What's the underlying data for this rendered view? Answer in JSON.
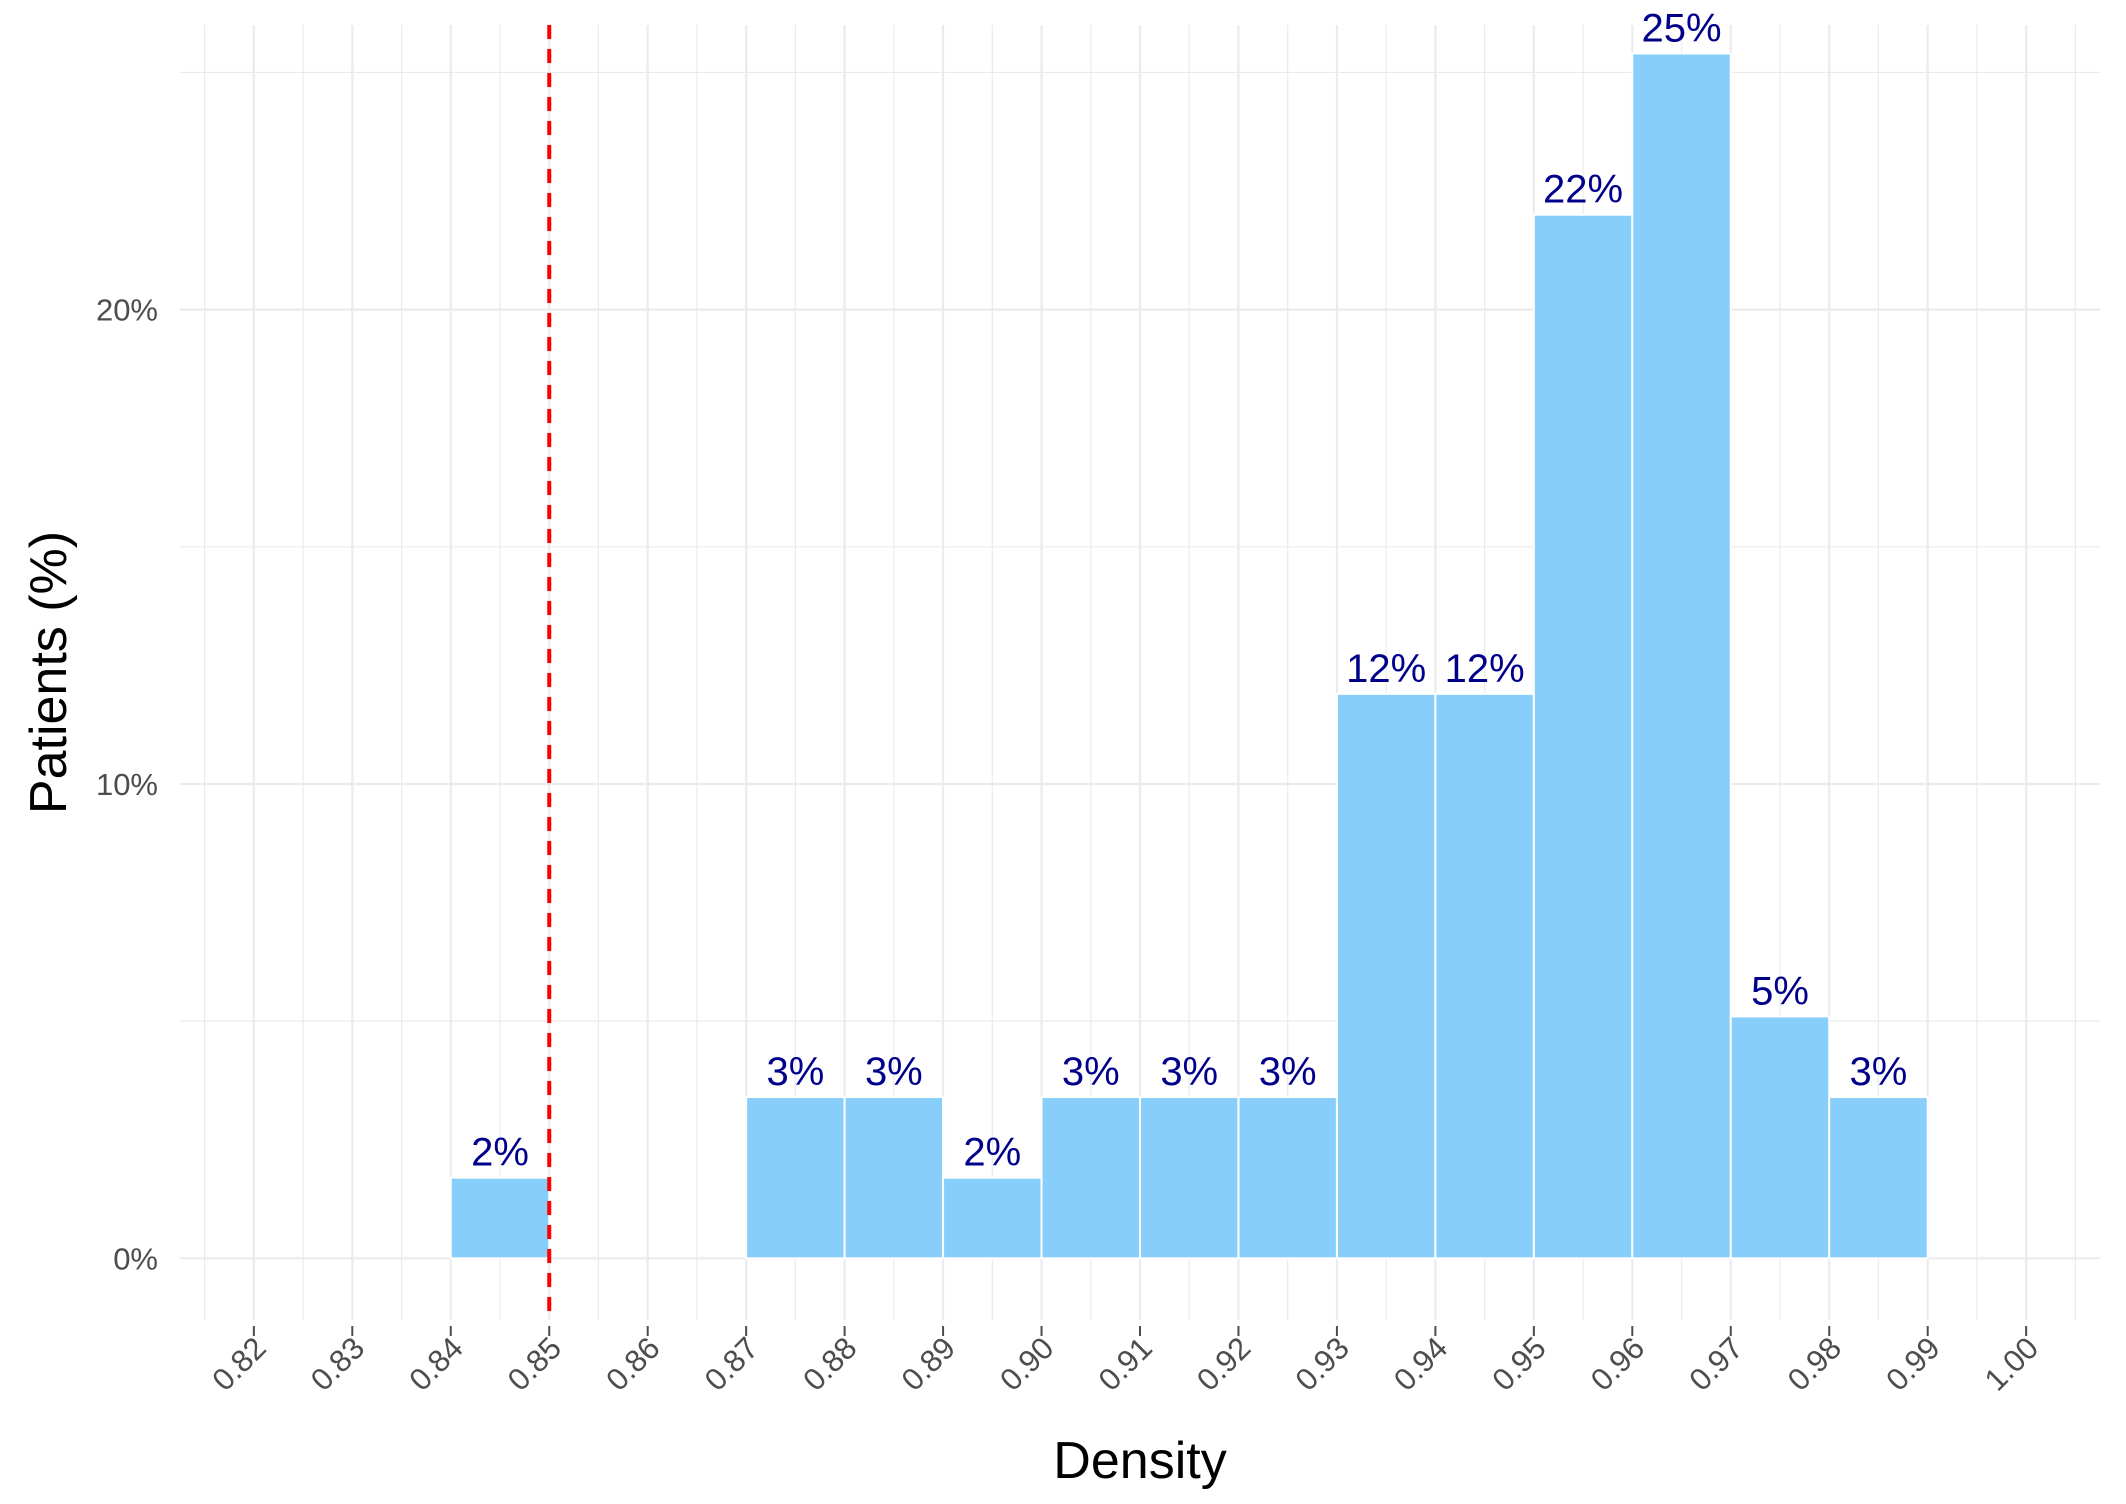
{
  "chart_data": {
    "type": "bar",
    "xlabel": "Density",
    "ylabel": "Patients (%)",
    "x_ticks": [
      "0.82",
      "0.83",
      "0.84",
      "0.85",
      "0.86",
      "0.87",
      "0.88",
      "0.89",
      "0.90",
      "0.91",
      "0.92",
      "0.93",
      "0.94",
      "0.95",
      "0.96",
      "0.97",
      "0.98",
      "0.99",
      "1.00"
    ],
    "y_ticks": [
      {
        "value": 0,
        "label": "0%"
      },
      {
        "value": 10,
        "label": "10%"
      },
      {
        "value": 20,
        "label": "20%"
      }
    ],
    "xlim": [
      0.8125,
      1.0075
    ],
    "ylim": [
      -1.3,
      26.0
    ],
    "bins": [
      {
        "x0": 0.84,
        "x1": 0.85,
        "value": 1.7,
        "label": "2%"
      },
      {
        "x0": 0.87,
        "x1": 0.88,
        "value": 3.4,
        "label": "3%"
      },
      {
        "x0": 0.88,
        "x1": 0.89,
        "value": 3.4,
        "label": "3%"
      },
      {
        "x0": 0.89,
        "x1": 0.9,
        "value": 1.7,
        "label": "2%"
      },
      {
        "x0": 0.9,
        "x1": 0.91,
        "value": 3.4,
        "label": "3%"
      },
      {
        "x0": 0.91,
        "x1": 0.92,
        "value": 3.4,
        "label": "3%"
      },
      {
        "x0": 0.92,
        "x1": 0.93,
        "value": 3.4,
        "label": "3%"
      },
      {
        "x0": 0.93,
        "x1": 0.94,
        "value": 11.9,
        "label": "12%"
      },
      {
        "x0": 0.94,
        "x1": 0.95,
        "value": 11.9,
        "label": "12%"
      },
      {
        "x0": 0.95,
        "x1": 0.96,
        "value": 22.0,
        "label": "22%"
      },
      {
        "x0": 0.96,
        "x1": 0.97,
        "value": 25.4,
        "label": "25%"
      },
      {
        "x0": 0.97,
        "x1": 0.98,
        "value": 5.1,
        "label": "5%"
      },
      {
        "x0": 0.98,
        "x1": 0.99,
        "value": 3.4,
        "label": "3%"
      }
    ],
    "reference_line": {
      "x": 0.85,
      "style": "dashed",
      "color": "#ff0000"
    },
    "bar_color": "#87cefa",
    "label_color": "#00008b",
    "grid": true,
    "legend": "none"
  }
}
